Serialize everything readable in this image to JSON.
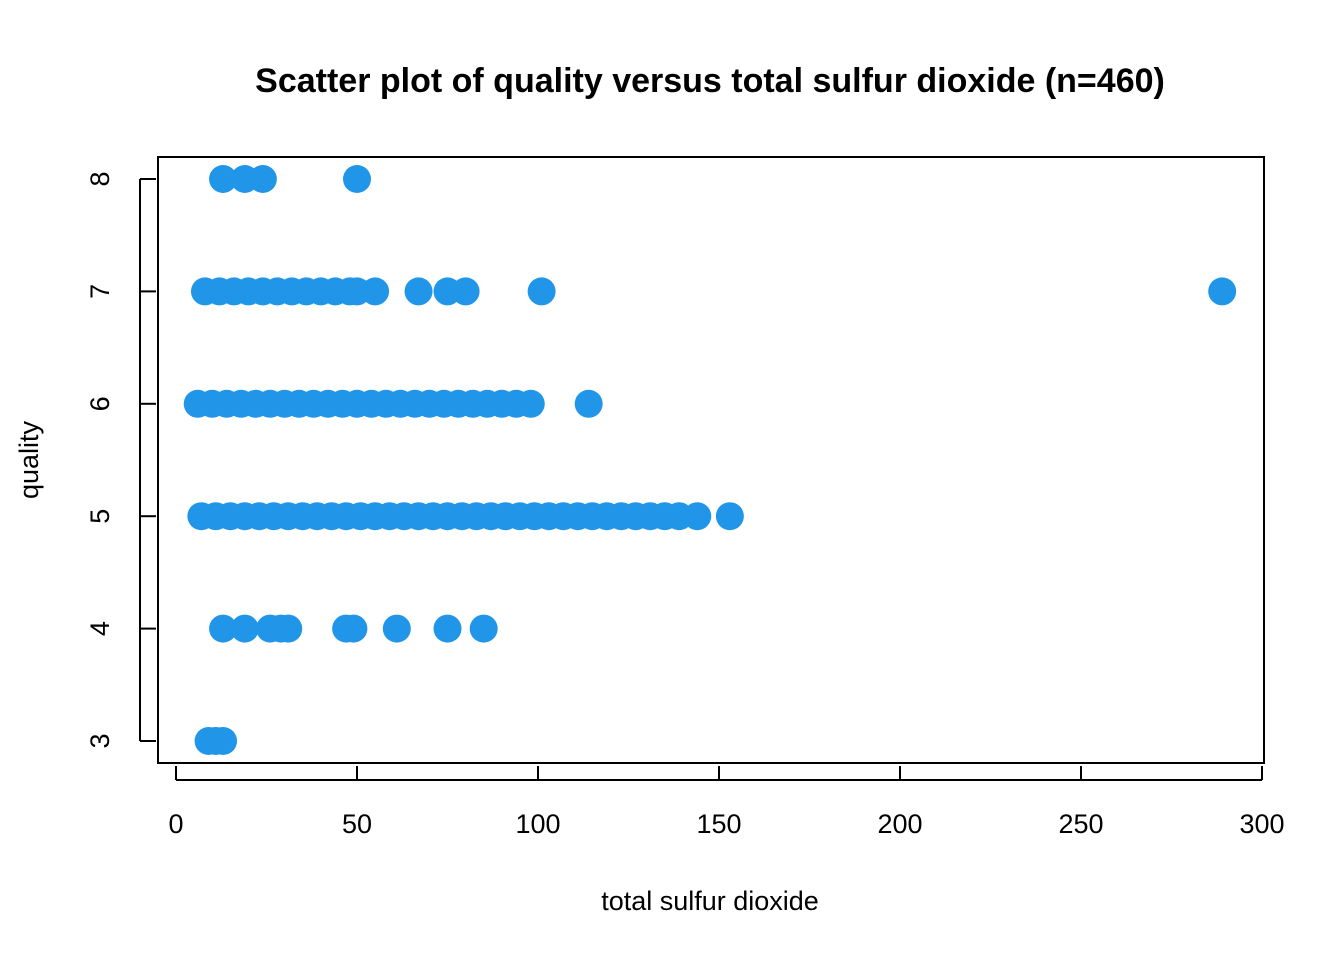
{
  "chart_data": {
    "type": "scatter",
    "title": "Scatter plot of quality versus total sulfur dioxide (n=460)",
    "xlabel": "total sulfur dioxide",
    "ylabel": "quality",
    "xlim": [
      0,
      300
    ],
    "ylim": [
      3,
      8
    ],
    "xticks": [
      "0",
      "50",
      "100",
      "150",
      "200",
      "250",
      "300"
    ],
    "yticks": [
      "3",
      "4",
      "5",
      "6",
      "7",
      "8"
    ],
    "grid": false,
    "legend": "none",
    "point_color": "#2196E8",
    "points": [
      {
        "x": 13,
        "y": 8
      },
      {
        "x": 19,
        "y": 8
      },
      {
        "x": 24,
        "y": 8
      },
      {
        "x": 50,
        "y": 8
      },
      {
        "x": 8,
        "y": 7
      },
      {
        "x": 12,
        "y": 7
      },
      {
        "x": 16,
        "y": 7
      },
      {
        "x": 20,
        "y": 7
      },
      {
        "x": 24,
        "y": 7
      },
      {
        "x": 28,
        "y": 7
      },
      {
        "x": 32,
        "y": 7
      },
      {
        "x": 36,
        "y": 7
      },
      {
        "x": 40,
        "y": 7
      },
      {
        "x": 44,
        "y": 7
      },
      {
        "x": 48,
        "y": 7
      },
      {
        "x": 50,
        "y": 7
      },
      {
        "x": 55,
        "y": 7
      },
      {
        "x": 67,
        "y": 7
      },
      {
        "x": 75,
        "y": 7
      },
      {
        "x": 80,
        "y": 7
      },
      {
        "x": 101,
        "y": 7
      },
      {
        "x": 289,
        "y": 7
      },
      {
        "x": 6,
        "y": 6
      },
      {
        "x": 10,
        "y": 6
      },
      {
        "x": 14,
        "y": 6
      },
      {
        "x": 18,
        "y": 6
      },
      {
        "x": 22,
        "y": 6
      },
      {
        "x": 26,
        "y": 6
      },
      {
        "x": 30,
        "y": 6
      },
      {
        "x": 34,
        "y": 6
      },
      {
        "x": 38,
        "y": 6
      },
      {
        "x": 42,
        "y": 6
      },
      {
        "x": 46,
        "y": 6
      },
      {
        "x": 50,
        "y": 6
      },
      {
        "x": 54,
        "y": 6
      },
      {
        "x": 58,
        "y": 6
      },
      {
        "x": 62,
        "y": 6
      },
      {
        "x": 66,
        "y": 6
      },
      {
        "x": 70,
        "y": 6
      },
      {
        "x": 74,
        "y": 6
      },
      {
        "x": 78,
        "y": 6
      },
      {
        "x": 82,
        "y": 6
      },
      {
        "x": 86,
        "y": 6
      },
      {
        "x": 90,
        "y": 6
      },
      {
        "x": 94,
        "y": 6
      },
      {
        "x": 98,
        "y": 6
      },
      {
        "x": 114,
        "y": 6
      },
      {
        "x": 7,
        "y": 5
      },
      {
        "x": 11,
        "y": 5
      },
      {
        "x": 15,
        "y": 5
      },
      {
        "x": 19,
        "y": 5
      },
      {
        "x": 23,
        "y": 5
      },
      {
        "x": 27,
        "y": 5
      },
      {
        "x": 31,
        "y": 5
      },
      {
        "x": 35,
        "y": 5
      },
      {
        "x": 39,
        "y": 5
      },
      {
        "x": 43,
        "y": 5
      },
      {
        "x": 47,
        "y": 5
      },
      {
        "x": 51,
        "y": 5
      },
      {
        "x": 55,
        "y": 5
      },
      {
        "x": 59,
        "y": 5
      },
      {
        "x": 63,
        "y": 5
      },
      {
        "x": 67,
        "y": 5
      },
      {
        "x": 71,
        "y": 5
      },
      {
        "x": 75,
        "y": 5
      },
      {
        "x": 79,
        "y": 5
      },
      {
        "x": 83,
        "y": 5
      },
      {
        "x": 87,
        "y": 5
      },
      {
        "x": 91,
        "y": 5
      },
      {
        "x": 95,
        "y": 5
      },
      {
        "x": 99,
        "y": 5
      },
      {
        "x": 103,
        "y": 5
      },
      {
        "x": 107,
        "y": 5
      },
      {
        "x": 111,
        "y": 5
      },
      {
        "x": 115,
        "y": 5
      },
      {
        "x": 119,
        "y": 5
      },
      {
        "x": 123,
        "y": 5
      },
      {
        "x": 127,
        "y": 5
      },
      {
        "x": 131,
        "y": 5
      },
      {
        "x": 135,
        "y": 5
      },
      {
        "x": 139,
        "y": 5
      },
      {
        "x": 144,
        "y": 5
      },
      {
        "x": 153,
        "y": 5
      },
      {
        "x": 13,
        "y": 4
      },
      {
        "x": 19,
        "y": 4
      },
      {
        "x": 26,
        "y": 4
      },
      {
        "x": 29,
        "y": 4
      },
      {
        "x": 31,
        "y": 4
      },
      {
        "x": 47,
        "y": 4
      },
      {
        "x": 49,
        "y": 4
      },
      {
        "x": 61,
        "y": 4
      },
      {
        "x": 75,
        "y": 4
      },
      {
        "x": 85,
        "y": 4
      },
      {
        "x": 9,
        "y": 3
      },
      {
        "x": 11,
        "y": 3
      },
      {
        "x": 13,
        "y": 3
      }
    ]
  }
}
